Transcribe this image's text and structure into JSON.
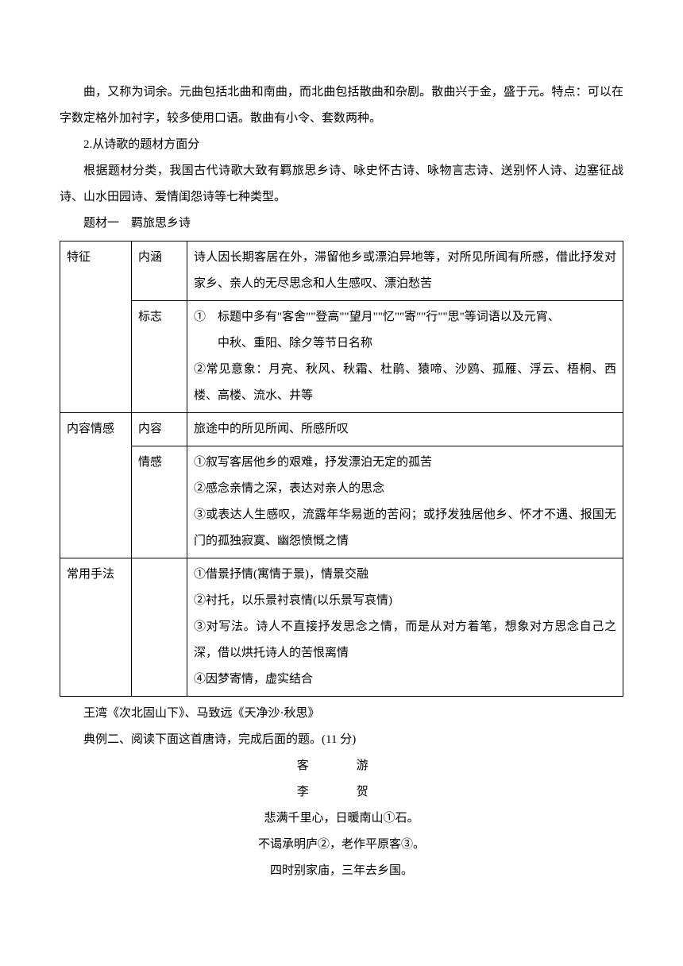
{
  "intro": {
    "para1": "曲，又称为词余。元曲包括北曲和南曲，而北曲包括散曲和杂剧。散曲兴于金，盛于元。特点：可以在字数定格外加衬字，较多使用口语。散曲有小令、套数两种。",
    "section_num": "2.从诗歌的题材方面分",
    "para2": "根据题材分类，我国古代诗歌大致有羁旅思乡诗、咏史怀古诗、咏物言志诗、送别怀人诗、边塞征战诗、山水田园诗、爱情闺怨诗等七种类型。",
    "topic_title": "题材一　羁旅思乡诗"
  },
  "table": {
    "row1_col1": "特征",
    "row1_col2": "内涵",
    "row1_col3": "诗人因长期客居在外，滞留他乡或漂泊异地等，对所见所闻有所感，借此抒发对家乡、亲人的无尽思念和人生感叹、漂泊愁苦",
    "row2_col2": "标志",
    "row2_col3_line1": "①　标题中多有\"客舍\"\"登高\"\"望月\"\"忆\"\"寄\"\"行\"\"思\"等词语以及元宵、",
    "row2_col3_line2": "中秋、重阳、除夕等节日名称",
    "row2_col3_line3": "②常见意象：月亮、秋风、秋霜、杜鹃、猿啼、沙鸥、孤雁、浮云、梧桐、西楼、高楼、流水、井等",
    "row3_col1": "内容情感",
    "row3_col2": "内容",
    "row3_col3": "旅途中的所见所闻、所感所叹",
    "row4_col2": "情感",
    "row4_col3_line1": "①叙写客居他乡的艰难，抒发漂泊无定的孤苦",
    "row4_col3_line2": "②感念亲情之深，表达对亲人的思念",
    "row4_col3_line3": "③或表达人生感叹，流露年华易逝的苦闷；或抒发独居他乡、怀才不遇、报国无门的孤独寂寞、幽怨愤慨之情",
    "row5_col1": "常用手法",
    "row5_col3_line1": "①借景抒情(寓情于景)，情景交融",
    "row5_col3_line2": "②衬托，以乐景衬哀情(以乐景写哀情)",
    "row5_col3_line3": "③对写法。诗人不直接抒发思念之情，而是从对方着笔，想象对方思念自己之深，借以烘托诗人的苦恨离情",
    "row5_col3_line4": "④因梦寄情，虚实结合"
  },
  "after": {
    "examples": "王湾《次北固山下》、马致远《天净沙·秋思》",
    "exercise": "典例二、阅读下面这首唐诗，完成后面的题。(11 分)",
    "poem_title": "客　游",
    "poem_author": "李　贺",
    "poem_line1": "悲满千里心，日暖南山①石。",
    "poem_line2": "不谒承明庐②，老作平原客③。",
    "poem_line3": "四时别家庙，三年去乡国。"
  }
}
